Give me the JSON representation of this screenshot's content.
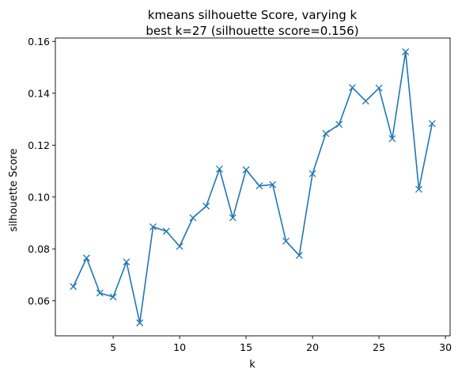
{
  "chart_data": {
    "type": "line",
    "title": "kmeans silhouette Score, varying k",
    "subtitle": "best k=27 (silhouette score=0.156)",
    "xlabel": "k",
    "ylabel": "silhouette Score",
    "xlim": [
      0.65,
      30.35
    ],
    "ylim": [
      0.0465,
      0.1613
    ],
    "xticks": [
      5,
      10,
      15,
      20,
      25,
      30
    ],
    "yticks": [
      0.06,
      0.08,
      0.1,
      0.12,
      0.14,
      0.16
    ],
    "ytick_labels": [
      "0.06",
      "0.08",
      "0.10",
      "0.12",
      "0.14",
      "0.16"
    ],
    "grid": false,
    "legend": "none",
    "marker": "x",
    "color": "#1f77b4",
    "x": [
      2,
      3,
      4,
      5,
      6,
      7,
      8,
      9,
      10,
      11,
      12,
      13,
      14,
      15,
      16,
      17,
      18,
      19,
      20,
      21,
      22,
      23,
      24,
      25,
      26,
      27,
      28,
      29
    ],
    "y": [
      0.0655,
      0.0765,
      0.063,
      0.0615,
      0.075,
      0.0515,
      0.0885,
      0.0868,
      0.081,
      0.092,
      0.0965,
      0.1108,
      0.092,
      0.1105,
      0.1043,
      0.1048,
      0.083,
      0.0775,
      0.109,
      0.1245,
      0.128,
      0.1422,
      0.137,
      0.142,
      0.1225,
      0.156,
      0.103,
      0.1283
    ]
  }
}
